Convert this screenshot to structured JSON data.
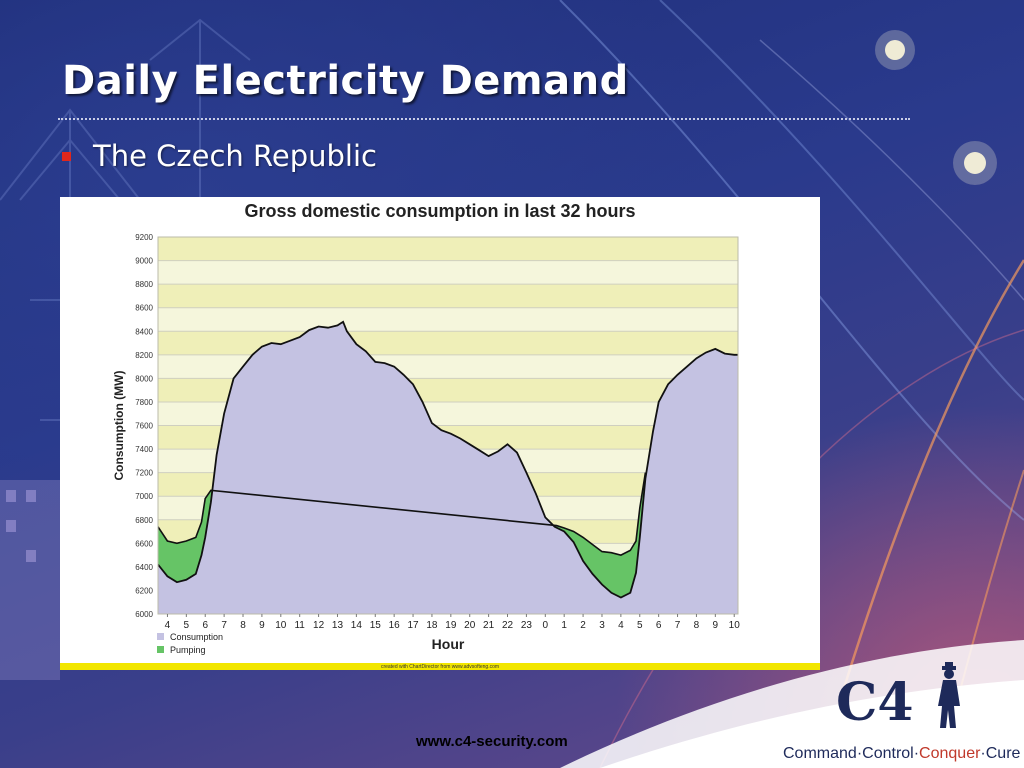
{
  "slide": {
    "title": "Daily Electricity Demand",
    "bullet": "The Czech Republic",
    "footer_url": "www.c4-security.com"
  },
  "logo": {
    "mark": "C4",
    "tagline_parts": [
      "Command",
      "Control",
      "Conquer",
      "Cure"
    ],
    "tagline_separator": "·",
    "accent_color": "#c0392b",
    "brand_color": "#1e2a5a"
  },
  "chart_data": {
    "type": "area",
    "title": "Gross domestic consumption in last 32 hours",
    "xlabel": "Hour",
    "ylabel": "Consumption (MW)",
    "ylim": [
      6000,
      9200
    ],
    "ytick_values": [
      6000,
      6200,
      6400,
      6600,
      6800,
      7000,
      7200,
      7400,
      7600,
      7800,
      8000,
      8200,
      8400,
      8600,
      8800,
      9000,
      9200
    ],
    "x_tick_labels": [
      "4",
      "5",
      "6",
      "7",
      "8",
      "9",
      "10",
      "11",
      "12",
      "13",
      "14",
      "15",
      "16",
      "17",
      "18",
      "19",
      "20",
      "21",
      "22",
      "23",
      "0",
      "1",
      "2",
      "3",
      "4",
      "5",
      "6",
      "7",
      "8",
      "9",
      "10"
    ],
    "x_start_hour": 3.5,
    "x_end_hour": 34.2,
    "grid": true,
    "legend_position": "bottom-left",
    "footnote": "created with ChartDirector from www.advsofteng.com",
    "colors": {
      "band_light": "#f5f6dc",
      "band_dark": "#efefb8",
      "consumption": "#c4c2e2",
      "pumping": "#66c466",
      "line": "#111111"
    },
    "series": [
      {
        "name": "Consumption",
        "x": [
          3.5,
          4,
          4.5,
          5,
          5.5,
          5.8,
          6.0,
          6.3,
          6.6,
          7,
          7.5,
          8,
          8.5,
          9,
          9.5,
          10,
          10.5,
          11,
          11.5,
          12,
          12.5,
          13,
          13.3,
          13.5,
          14,
          14.5,
          15,
          15.5,
          16,
          16.5,
          17,
          17.5,
          18,
          18.5,
          19,
          19.5,
          20,
          20.5,
          21,
          21.5,
          22,
          22.5,
          23,
          23.5,
          24,
          24.5,
          25,
          25.5,
          26,
          26.5,
          27,
          27.5,
          28,
          28.5,
          28.8,
          29.0,
          29.3,
          29.7,
          30,
          30.5,
          31,
          31.5,
          32,
          32.5,
          33,
          33.5,
          34,
          34.2
        ],
        "values": [
          6420,
          6320,
          6270,
          6290,
          6340,
          6500,
          6650,
          6950,
          7350,
          7700,
          8000,
          8100,
          8200,
          8270,
          8300,
          8290,
          8320,
          8350,
          8410,
          8440,
          8430,
          8450,
          8480,
          8400,
          8290,
          8230,
          8140,
          8130,
          8100,
          8030,
          7950,
          7800,
          7620,
          7560,
          7530,
          7490,
          7440,
          7390,
          7340,
          7380,
          7440,
          7370,
          7200,
          7020,
          6820,
          6740,
          6700,
          6610,
          6450,
          6340,
          6250,
          6180,
          6140,
          6180,
          6350,
          6650,
          7150,
          7550,
          7800,
          7950,
          8030,
          8100,
          8170,
          8220,
          8250,
          8210,
          8200,
          8200
        ]
      },
      {
        "name": "Pumping",
        "x": [
          3.5,
          4,
          4.5,
          5,
          5.5,
          5.8,
          6.0,
          6.3,
          24.6,
          25,
          25.5,
          26,
          26.5,
          27,
          27.5,
          28,
          28.5,
          28.8,
          29.0,
          29.3
        ],
        "values": [
          6740,
          6620,
          6600,
          6620,
          6650,
          6780,
          6980,
          7050,
          6750,
          6730,
          6700,
          6650,
          6590,
          6530,
          6520,
          6500,
          6540,
          6620,
          6900,
          7200
        ]
      }
    ]
  }
}
